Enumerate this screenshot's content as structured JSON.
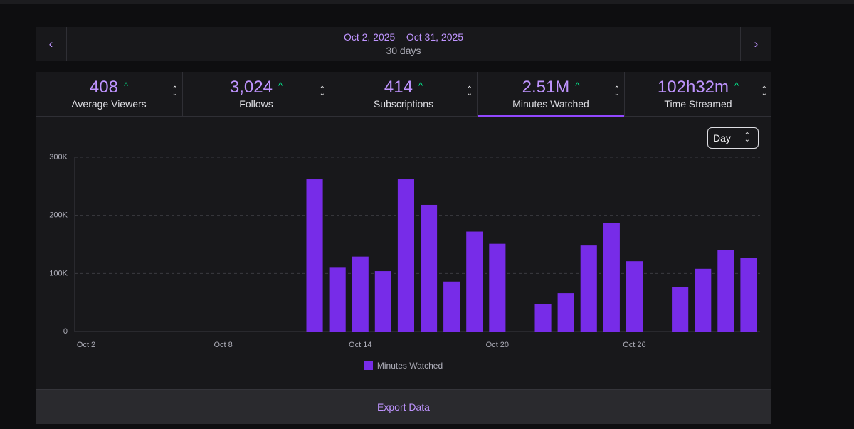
{
  "date_bar": {
    "range": "Oct 2, 2025 – Oct 31, 2025",
    "duration": "30 days",
    "prev_icon": "chevron-left-icon",
    "next_icon": "chevron-right-icon"
  },
  "stats": [
    {
      "value": "408",
      "label": "Average Viewers",
      "active": false
    },
    {
      "value": "3,024",
      "label": "Follows",
      "active": false
    },
    {
      "value": "414",
      "label": "Subscriptions",
      "active": false
    },
    {
      "value": "2.51M",
      "label": "Minutes Watched",
      "active": true
    },
    {
      "value": "102h32m",
      "label": "Time Streamed",
      "active": false
    }
  ],
  "granularity": {
    "selected": "Day"
  },
  "colors": {
    "accent": "#bf94ff",
    "bar": "#772ce8",
    "trend_up": "#00f593",
    "active_tab": "#9147ff"
  },
  "chart_data": {
    "type": "bar",
    "series": [
      {
        "name": "Minutes Watched"
      }
    ],
    "x": [
      "Oct 2",
      "Oct 3",
      "Oct 4",
      "Oct 5",
      "Oct 6",
      "Oct 7",
      "Oct 8",
      "Oct 9",
      "Oct 10",
      "Oct 11",
      "Oct 12",
      "Oct 13",
      "Oct 14",
      "Oct 15",
      "Oct 16",
      "Oct 17",
      "Oct 18",
      "Oct 19",
      "Oct 20",
      "Oct 21",
      "Oct 22",
      "Oct 23",
      "Oct 24",
      "Oct 25",
      "Oct 26",
      "Oct 27",
      "Oct 28",
      "Oct 29",
      "Oct 30",
      "Oct 31"
    ],
    "values": [
      0,
      0,
      0,
      0,
      0,
      0,
      0,
      0,
      0,
      0,
      262000,
      111000,
      129000,
      104000,
      262000,
      218000,
      86000,
      172000,
      151000,
      0,
      47000,
      66000,
      148000,
      187000,
      121000,
      0,
      77000,
      108000,
      140000,
      127000
    ],
    "y_ticks": [
      "0",
      "100K",
      "200K",
      "300K"
    ],
    "x_tick_labels": [
      "Oct 2",
      "Oct 8",
      "Oct 14",
      "Oct 20",
      "Oct 26"
    ],
    "ylim": [
      0,
      300000
    ],
    "grid": true,
    "legend_position": "bottom"
  },
  "footer": {
    "export_label": "Export Data"
  }
}
